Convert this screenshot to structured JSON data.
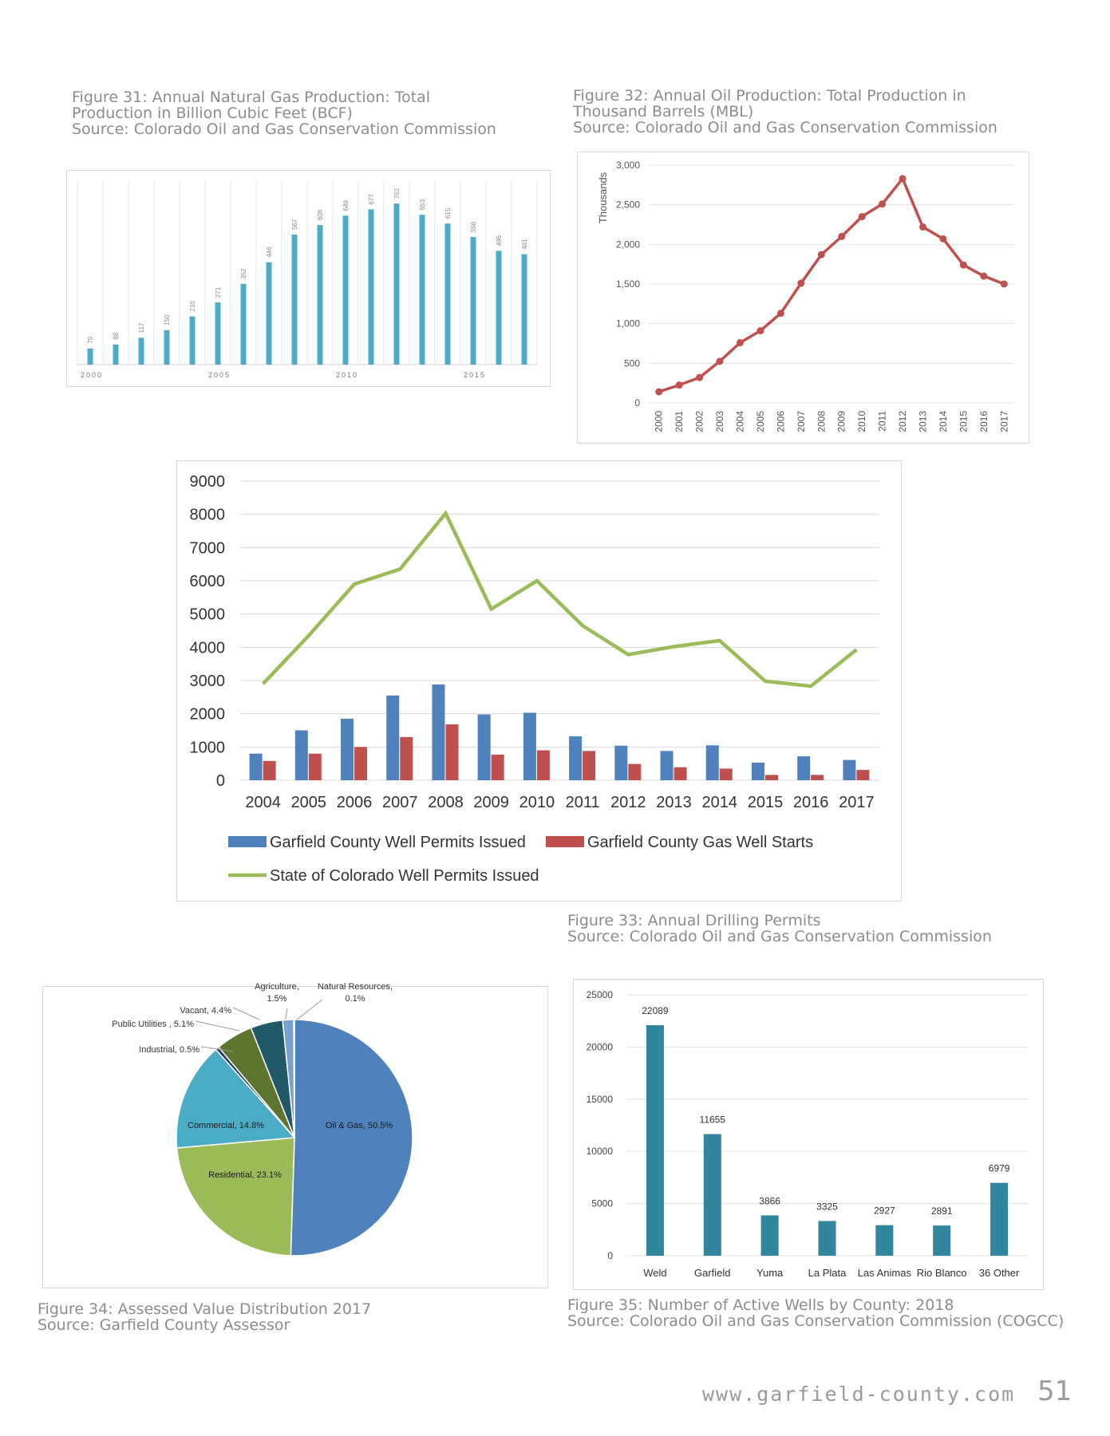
{
  "captions": {
    "fig31": [
      "Figure 31: Annual Natural Gas Production: Total",
      "Production in Billion Cubic Feet (BCF)",
      "Source: Colorado Oil and Gas Conservation Commission"
    ],
    "fig32": [
      "Figure 32: Annual Oil Production: Total Production in",
      "Thousand Barrels (MBL)",
      "Source: Colorado Oil and Gas Conservation Commission"
    ],
    "fig33": [
      "Figure 33: Annual Drilling Permits",
      "Source: Colorado Oil and Gas Conservation Commission"
    ],
    "fig34": [
      "Figure 34: Assessed Value Distribution 2017",
      "Source: Garfield County Assessor"
    ],
    "fig35": [
      "Figure 35: Number of Active Wells by County: 2018",
      "Source: Colorado Oil and Gas Conservation Commission (COGCC)"
    ]
  },
  "footer": {
    "url": "www.garfield-county.com",
    "page": "51"
  },
  "chart_data": [
    {
      "id": "fig31",
      "type": "bar",
      "color": "#4bacc6",
      "x": [
        2000,
        2001,
        2002,
        2003,
        2004,
        2005,
        2006,
        2007,
        2008,
        2009,
        2010,
        2011,
        2012,
        2013,
        2014,
        2015,
        2016,
        2017
      ],
      "values": [
        70,
        88,
        117,
        150,
        210,
        271,
        352,
        446,
        567,
        608,
        649,
        677,
        702,
        653,
        615,
        556,
        496,
        481
      ],
      "xtick_labels": [
        "2000",
        "2005",
        "2010",
        "2015"
      ],
      "ylim": [
        0,
        800
      ],
      "grid": "vertical"
    },
    {
      "id": "fig32",
      "type": "line",
      "color": "#c0504d",
      "x": [
        "2000",
        "2001",
        "2002",
        "2003",
        "2004",
        "2005",
        "2006",
        "2007",
        "2008",
        "2009",
        "2010",
        "2011",
        "2012",
        "2013",
        "2014",
        "2015",
        "2016",
        "2017"
      ],
      "values": [
        140,
        225,
        320,
        525,
        760,
        910,
        1130,
        1510,
        1870,
        2100,
        2350,
        2510,
        2830,
        2220,
        2070,
        1740,
        1600,
        1500
      ],
      "ylabel": "Thousands",
      "yticks": [
        "0",
        "500",
        "1,000",
        "1,500",
        "2,000",
        "2,500",
        "3,000"
      ],
      "ylim": [
        0,
        3000
      ],
      "grid": "horizontal"
    },
    {
      "id": "fig33",
      "type": "bar+line",
      "categories": [
        "2004",
        "2005",
        "2006",
        "2007",
        "2008",
        "2009",
        "2010",
        "2011",
        "2012",
        "2013",
        "2014",
        "2015",
        "2016",
        "2017"
      ],
      "series": [
        {
          "name": "Garfield County Well Permits Issued",
          "type": "bar",
          "color": "#4f81bd",
          "values": [
            800,
            1500,
            1850,
            2550,
            2880,
            1980,
            2030,
            1320,
            1040,
            880,
            1050,
            530,
            720,
            610
          ]
        },
        {
          "name": "Garfield County Gas Well Starts",
          "type": "bar",
          "color": "#c0504d",
          "values": [
            580,
            800,
            1000,
            1300,
            1680,
            770,
            900,
            880,
            490,
            390,
            350,
            160,
            160,
            310
          ]
        },
        {
          "name": "State of Colorado Well Permits Issued",
          "type": "line",
          "color": "#9bbb59",
          "values": [
            2900,
            4350,
            5900,
            6350,
            8030,
            5150,
            6000,
            4650,
            3780,
            4020,
            4200,
            2980,
            2830,
            3930
          ]
        }
      ],
      "yticks": [
        "0",
        "1000",
        "2000",
        "3000",
        "4000",
        "5000",
        "6000",
        "7000",
        "8000",
        "9000"
      ],
      "ylim": [
        0,
        9000
      ],
      "grid": "horizontal",
      "legend": "bottom"
    },
    {
      "id": "fig34",
      "type": "pie",
      "slices": [
        {
          "label": "Oil & Gas, 50.5%",
          "value": 50.5,
          "color": "#4f81bd"
        },
        {
          "label": "Residential, 23.1%",
          "value": 23.1,
          "color": "#9bbb59"
        },
        {
          "label": "Commercial, 14.8%",
          "value": 14.8,
          "color": "#4bacc6"
        },
        {
          "label": "Industrial, 0.5%",
          "value": 0.5,
          "color": "#1f3864"
        },
        {
          "label": "Public Utilities , 5.1%",
          "value": 5.1,
          "color": "#5e7530"
        },
        {
          "label": "Vacant, 4.4%",
          "value": 4.4,
          "color": "#215968"
        },
        {
          "label": "Agriculture, 1.5%",
          "value": 1.5,
          "color": "#7ba0cd"
        },
        {
          "label": "Natural Resources, 0.1%",
          "value": 0.1,
          "color": "#3f6fa8"
        }
      ]
    },
    {
      "id": "fig35",
      "type": "bar",
      "color": "#31859c",
      "categories": [
        "Weld",
        "Garfield",
        "Yuma",
        "La Plata",
        "Las Animas",
        "Rio Blanco",
        "36 Other"
      ],
      "values": [
        22089,
        11655,
        3866,
        3325,
        2927,
        2891,
        6979
      ],
      "yticks": [
        "0",
        "5000",
        "10000",
        "15000",
        "20000",
        "25000"
      ],
      "ylim": [
        0,
        25000
      ],
      "grid": "horizontal"
    }
  ]
}
